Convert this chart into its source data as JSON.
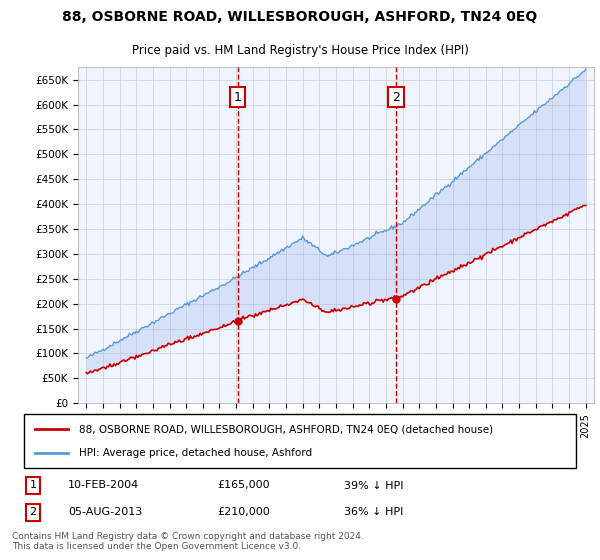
{
  "title": "88, OSBORNE ROAD, WILLESBOROUGH, ASHFORD, TN24 0EQ",
  "subtitle": "Price paid vs. HM Land Registry's House Price Index (HPI)",
  "footer": "Contains HM Land Registry data © Crown copyright and database right 2024.\nThis data is licensed under the Open Government Licence v3.0.",
  "legend_line1": "88, OSBORNE ROAD, WILLESBOROUGH, ASHFORD, TN24 0EQ (detached house)",
  "legend_line2": "HPI: Average price, detached house, Ashford",
  "marker1_label": "1",
  "marker1_date": "10-FEB-2004",
  "marker1_price": "£165,000",
  "marker1_hpi": "39% ↓ HPI",
  "marker1_year": 2004.1,
  "marker2_label": "2",
  "marker2_date": "05-AUG-2013",
  "marker2_price": "£210,000",
  "marker2_hpi": "36% ↓ HPI",
  "marker2_year": 2013.6,
  "ylim": [
    0,
    675000
  ],
  "xlim_start": 1994.5,
  "xlim_end": 2025.5,
  "ylabel_ticks": [
    0,
    50000,
    100000,
    150000,
    200000,
    250000,
    300000,
    350000,
    400000,
    450000,
    500000,
    550000,
    600000,
    650000
  ],
  "ylabel_labels": [
    "£0",
    "£50K",
    "£100K",
    "£150K",
    "£200K",
    "£250K",
    "£300K",
    "£350K",
    "£400K",
    "£450K",
    "£500K",
    "£550K",
    "£600K",
    "£650K"
  ],
  "bg_color": "#f0f4ff",
  "plot_bg_color": "#f0f4ff",
  "grid_color": "#cccccc",
  "red_line_color": "#cc0000",
  "blue_line_color": "#5599dd",
  "fill_color": "#aabbee",
  "vline_color": "#cc0000",
  "marker_box_color": "#cc0000"
}
